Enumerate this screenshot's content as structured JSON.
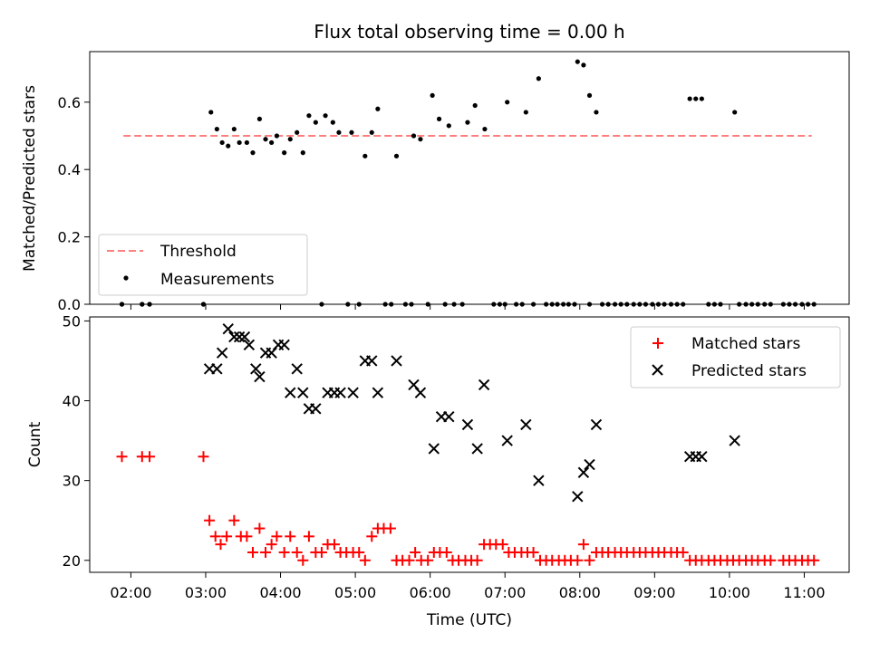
{
  "colors": {
    "threshold": "#ff7f7f",
    "measurement": "#000000",
    "matched": "#ff0000",
    "predicted": "#000000"
  },
  "chart_data": [
    {
      "type": "scatter",
      "title": "Flux total observing time = 0.00 h",
      "xlabel": "",
      "ylabel": "Matched/Predicted stars",
      "ylim": [
        0,
        0.75
      ],
      "yticks": [
        0.0,
        0.2,
        0.4,
        0.6
      ],
      "ytick_labels": [
        "0.0",
        "0.2",
        "0.4",
        "0.6"
      ],
      "xlim": [
        1.45,
        11.6
      ],
      "legend": {
        "placement": "lower-left",
        "entries": [
          "Threshold",
          "Measurements"
        ]
      },
      "threshold": {
        "name": "Threshold",
        "x": [
          1.9,
          11.1
        ],
        "y": 0.5
      },
      "series": [
        {
          "name": "Measurements",
          "x": [
            1.88,
            2.15,
            2.25,
            2.97,
            3.07,
            3.15,
            3.22,
            3.3,
            3.38,
            3.45,
            3.55,
            3.63,
            3.72,
            3.8,
            3.88,
            3.95,
            4.05,
            4.13,
            4.22,
            4.3,
            4.38,
            4.47,
            4.6,
            4.7,
            4.78,
            4.95,
            5.13,
            5.22,
            5.3,
            5.55,
            5.78,
            5.87,
            6.03,
            6.12,
            6.25,
            6.5,
            6.6,
            6.73,
            7.03,
            7.28,
            7.45,
            7.97,
            8.05,
            8.13,
            8.22,
            9.47,
            9.55,
            9.63,
            10.07
          ],
          "y": [
            0.0,
            0.0,
            0.0,
            0.0,
            0.57,
            0.52,
            0.48,
            0.47,
            0.52,
            0.48,
            0.48,
            0.45,
            0.55,
            0.49,
            0.48,
            0.5,
            0.45,
            0.49,
            0.51,
            0.45,
            0.56,
            0.54,
            0.56,
            0.54,
            0.51,
            0.51,
            0.44,
            0.51,
            0.58,
            0.44,
            0.5,
            0.49,
            0.62,
            0.55,
            0.53,
            0.54,
            0.59,
            0.52,
            0.6,
            0.57,
            0.67,
            0.72,
            0.71,
            0.62,
            0.57,
            0.61,
            0.61,
            0.61,
            0.57
          ]
        },
        {
          "name": "Measurements (zero)",
          "x": [
            1.88,
            2.15,
            2.25,
            2.97,
            4.55,
            4.9,
            5.05,
            5.4,
            5.48,
            5.67,
            5.75,
            5.97,
            6.2,
            6.32,
            6.43,
            6.85,
            6.93,
            7.0,
            7.15,
            7.23,
            7.38,
            7.55,
            7.63,
            7.7,
            7.78,
            7.85,
            7.93,
            8.13,
            8.3,
            8.38,
            8.47,
            8.55,
            8.63,
            8.72,
            8.8,
            8.88,
            8.97,
            9.05,
            9.13,
            9.22,
            9.3,
            9.38,
            9.72,
            9.8,
            9.88,
            10.13,
            10.22,
            10.3,
            10.38,
            10.47,
            10.55,
            10.72,
            10.8,
            10.88,
            10.97,
            11.05,
            11.13
          ],
          "y": 0.0
        }
      ]
    },
    {
      "type": "scatter",
      "title": "",
      "xlabel": "Time (UTC)",
      "ylabel": "Count",
      "ylim": [
        18.5,
        50.5
      ],
      "yticks": [
        20,
        30,
        40,
        50
      ],
      "ytick_labels": [
        "20",
        "30",
        "40",
        "50"
      ],
      "xlim": [
        1.45,
        11.6
      ],
      "xticks": [
        2,
        3,
        4,
        5,
        6,
        7,
        8,
        9,
        10,
        11
      ],
      "xtick_labels": [
        "02:00",
        "03:00",
        "04:00",
        "05:00",
        "06:00",
        "07:00",
        "08:00",
        "09:00",
        "10:00",
        "11:00"
      ],
      "legend": {
        "placement": "top-right",
        "entries": [
          "Matched stars",
          "Predicted stars"
        ]
      },
      "series": [
        {
          "name": "Matched stars",
          "x": [
            1.88,
            2.15,
            2.25,
            2.97,
            3.05,
            3.13,
            3.2,
            3.28,
            3.38,
            3.47,
            3.55,
            3.63,
            3.72,
            3.8,
            3.88,
            3.95,
            4.05,
            4.13,
            4.22,
            4.3,
            4.38,
            4.47,
            4.55,
            4.63,
            4.72,
            4.8,
            4.88,
            4.97,
            5.05,
            5.13,
            5.22,
            5.3,
            5.38,
            5.47,
            5.55,
            5.63,
            5.72,
            5.8,
            5.88,
            5.97,
            6.05,
            6.13,
            6.22,
            6.3,
            6.38,
            6.47,
            6.55,
            6.63,
            6.72,
            6.8,
            6.88,
            6.97,
            7.05,
            7.13,
            7.22,
            7.3,
            7.38,
            7.47,
            7.55,
            7.63,
            7.72,
            7.8,
            7.88,
            7.97,
            8.05,
            8.13,
            8.22,
            8.3,
            8.38,
            8.47,
            8.55,
            8.63,
            8.72,
            8.8,
            8.88,
            8.97,
            9.05,
            9.13,
            9.22,
            9.3,
            9.38,
            9.47,
            9.55,
            9.63,
            9.72,
            9.8,
            9.88,
            9.97,
            10.05,
            10.13,
            10.22,
            10.3,
            10.38,
            10.47,
            10.55,
            10.72,
            10.8,
            10.88,
            10.97,
            11.05,
            11.13
          ],
          "y": [
            33,
            33,
            33,
            33,
            25,
            23,
            22,
            23,
            25,
            23,
            23,
            21,
            24,
            21,
            22,
            23,
            21,
            23,
            21,
            20,
            23,
            21,
            21,
            22,
            22,
            21,
            21,
            21,
            21,
            20,
            23,
            24,
            24,
            24,
            20,
            20,
            20,
            21,
            20,
            20,
            21,
            21,
            21,
            20,
            20,
            20,
            20,
            20,
            22,
            22,
            22,
            22,
            21,
            21,
            21,
            21,
            21,
            20,
            20,
            20,
            20,
            20,
            20,
            20,
            22,
            20,
            21,
            21,
            21,
            21,
            21,
            21,
            21,
            21,
            21,
            21,
            21,
            21,
            21,
            21,
            21,
            20,
            20,
            20,
            20,
            20,
            20,
            20,
            20,
            20,
            20,
            20,
            20,
            20,
            20,
            20,
            20,
            20,
            20,
            20,
            20
          ]
        },
        {
          "name": "Predicted stars",
          "x": [
            3.05,
            3.15,
            3.22,
            3.3,
            3.38,
            3.45,
            3.52,
            3.58,
            3.67,
            3.72,
            3.8,
            3.88,
            3.97,
            4.05,
            4.13,
            4.22,
            4.3,
            4.38,
            4.47,
            4.63,
            4.72,
            4.8,
            4.97,
            5.13,
            5.22,
            5.3,
            5.55,
            5.78,
            5.87,
            6.05,
            6.15,
            6.25,
            6.5,
            6.63,
            6.72,
            7.03,
            7.28,
            7.45,
            7.97,
            8.05,
            8.13,
            8.22,
            9.47,
            9.55,
            9.63,
            10.07
          ],
          "y": [
            44,
            44,
            46,
            49,
            48,
            48,
            48,
            47,
            44,
            43,
            46,
            46,
            47,
            47,
            41,
            44,
            41,
            39,
            39,
            41,
            41,
            41,
            41,
            45,
            45,
            41,
            45,
            42,
            41,
            34,
            38,
            38,
            37,
            34,
            42,
            35,
            37,
            30,
            28,
            31,
            32,
            37,
            33,
            33,
            33,
            35
          ]
        }
      ]
    }
  ]
}
